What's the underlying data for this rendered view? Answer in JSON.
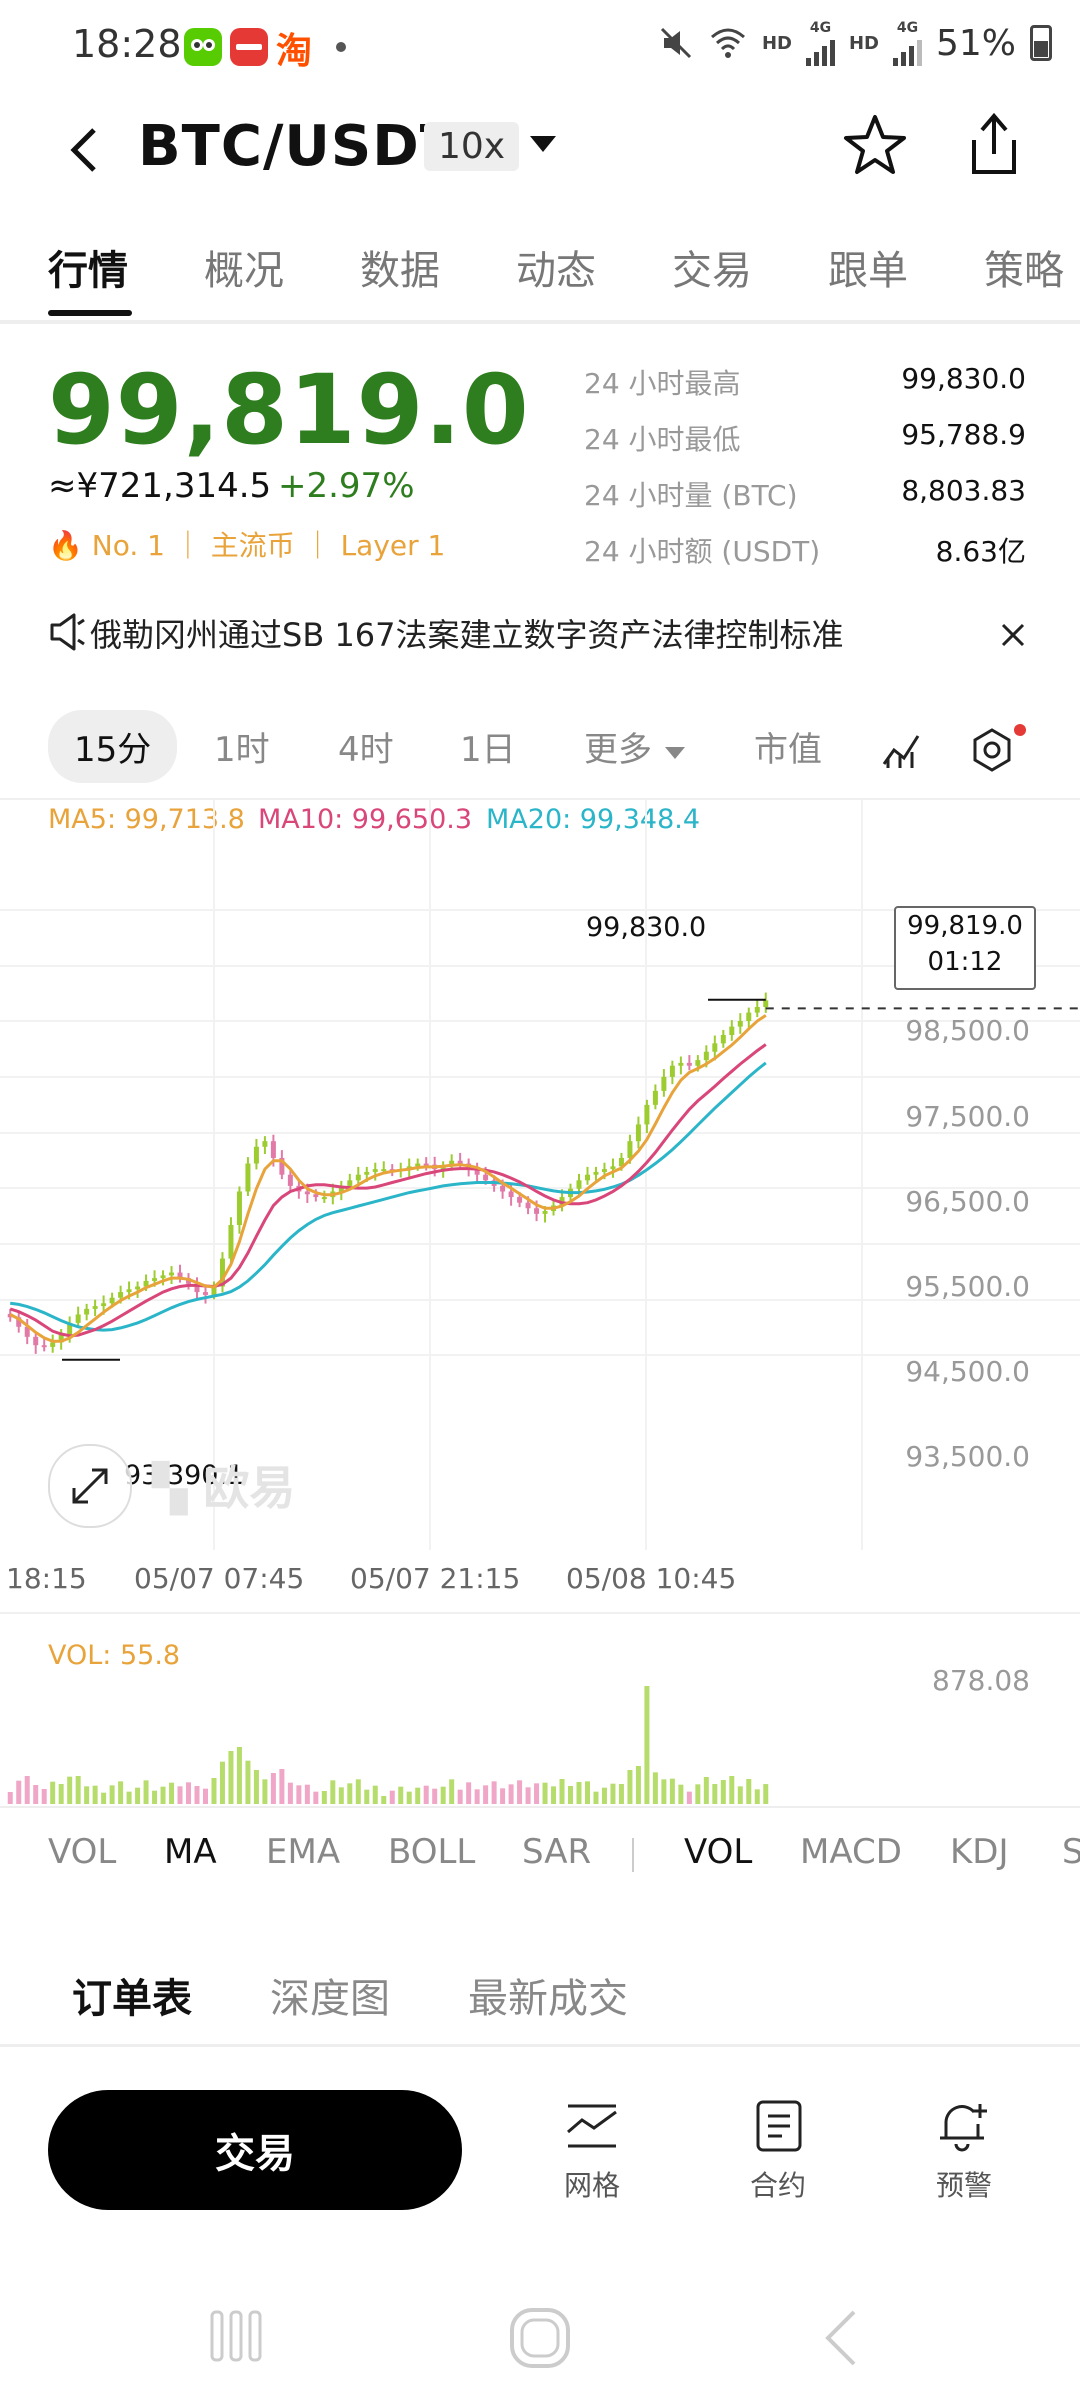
{
  "status_bar": {
    "time": "18:28",
    "hd1": "HD",
    "hd2": "HD",
    "net1": "4G",
    "net2": "4G",
    "battery": "51%",
    "app_icons": [
      "owl-app-icon",
      "red-app-icon",
      "taobao-icon"
    ]
  },
  "header": {
    "pair": "BTC/USDT",
    "leverage": "10x"
  },
  "tabs": [
    "行情",
    "概况",
    "数据",
    "动态",
    "交易",
    "跟单",
    "策略"
  ],
  "price": {
    "last": "99,819.0",
    "cny": "≈¥721,314.5",
    "change": "+2.97%",
    "tags": "No. 1 ｜ 主流币 ｜ Layer 1",
    "stats": [
      {
        "label": "24 小时最高",
        "value": "99,830.0"
      },
      {
        "label": "24 小时最低",
        "value": "95,788.9"
      },
      {
        "label": "24 小时量 (BTC)",
        "value": "8,803.83"
      },
      {
        "label": "24 小时额 (USDT)",
        "value": "8.63亿"
      }
    ]
  },
  "news": {
    "text": "俄勒冈州通过SB 167法案建立数字资产法律控制标准"
  },
  "intervals": {
    "items": [
      "15分",
      "1时",
      "4时",
      "1日",
      "更多"
    ],
    "market_cap": "市值"
  },
  "ma_legend": {
    "ma5": "MA5: 99,713.8",
    "ma10": "MA10: 99,650.3",
    "ma20": "MA20: 99,348.4"
  },
  "chart_data": {
    "type": "candlestick",
    "y_axis_labels": [
      "98,500.0",
      "97,500.0",
      "96,500.0",
      "95,500.0",
      "94,500.0",
      "93,500.0"
    ],
    "x_axis_labels": [
      "18:15",
      "05/07 07:45",
      "05/07 21:15",
      "05/08 10:45"
    ],
    "high_marker": "99,830.0",
    "low_marker": "93,390.1",
    "current_price": "99,819.0",
    "countdown": "01:12",
    "watermark": "欧易",
    "close": [
      94150,
      93980,
      93800,
      93650,
      93620,
      93700,
      93850,
      94050,
      94200,
      94300,
      94350,
      94400,
      94500,
      94600,
      94650,
      94700,
      94800,
      94850,
      94900,
      94950,
      94850,
      94750,
      94600,
      94550,
      94700,
      95200,
      95800,
      96400,
      96900,
      97200,
      97300,
      97000,
      96700,
      96500,
      96400,
      96350,
      96300,
      96300,
      96400,
      96500,
      96600,
      96700,
      96750,
      96800,
      96800,
      96780,
      96800,
      96850,
      96900,
      96880,
      96800,
      96850,
      96950,
      96900,
      96800,
      96700,
      96600,
      96500,
      96400,
      96300,
      96200,
      96100,
      96000,
      96050,
      96150,
      96300,
      96450,
      96600,
      96700,
      96750,
      96800,
      96850,
      97000,
      97300,
      97600,
      97950,
      98200,
      98450,
      98650,
      98700,
      98650,
      98750,
      98900,
      99050,
      99200,
      99350,
      99450,
      99600,
      99700,
      99819
    ],
    "ma5": [
      94200,
      94120,
      94000,
      93880,
      93780,
      93720,
      93720,
      93780,
      93880,
      94000,
      94120,
      94240,
      94350,
      94450,
      94530,
      94600,
      94680,
      94740,
      94800,
      94850,
      94850,
      94830,
      94770,
      94710,
      94690,
      94830,
      95100,
      95500,
      96000,
      96450,
      96800,
      96950,
      96950,
      96800,
      96600,
      96450,
      96380,
      96340,
      96340,
      96380,
      96440,
      96520,
      96610,
      96680,
      96730,
      96760,
      96780,
      96800,
      96830,
      96840,
      96840,
      96850,
      96870,
      96880,
      96860,
      96830,
      96760,
      96660,
      96550,
      96460,
      96360,
      96260,
      96160,
      96100,
      96100,
      96140,
      96220,
      96320,
      96450,
      96570,
      96680,
      96750,
      96820,
      96960,
      97120,
      97330,
      97610,
      97900,
      98170,
      98390,
      98530,
      98600,
      98680,
      98780,
      98900,
      99020,
      99160,
      99310,
      99450,
      99550
    ],
    "ma10": [
      94300,
      94250,
      94180,
      94100,
      94000,
      93900,
      93850,
      93820,
      93830,
      93880,
      93930,
      94000,
      94080,
      94170,
      94260,
      94350,
      94440,
      94520,
      94600,
      94660,
      94700,
      94720,
      94720,
      94710,
      94700,
      94740,
      94850,
      95040,
      95300,
      95600,
      95890,
      96150,
      96300,
      96400,
      96450,
      96500,
      96520,
      96520,
      96500,
      96480,
      96470,
      96460,
      96460,
      96480,
      96520,
      96560,
      96600,
      96640,
      96680,
      96720,
      96750,
      96780,
      96800,
      96810,
      96810,
      96800,
      96780,
      96750,
      96700,
      96640,
      96570,
      96490,
      96400,
      96320,
      96250,
      96200,
      96180,
      96180,
      96200,
      96250,
      96320,
      96400,
      96500,
      96620,
      96760,
      96920,
      97100,
      97300,
      97500,
      97690,
      97870,
      98020,
      98150,
      98280,
      98420,
      98550,
      98680,
      98800,
      98920,
      99030
    ],
    "ma20": [
      94400,
      94380,
      94340,
      94290,
      94230,
      94160,
      94090,
      94030,
      93980,
      93950,
      93930,
      93920,
      93930,
      93960,
      94000,
      94050,
      94110,
      94180,
      94250,
      94320,
      94380,
      94430,
      94470,
      94500,
      94530,
      94560,
      94610,
      94690,
      94800,
      94940,
      95090,
      95260,
      95420,
      95570,
      95700,
      95810,
      95900,
      95970,
      96020,
      96060,
      96100,
      96140,
      96180,
      96220,
      96260,
      96300,
      96340,
      96380,
      96410,
      96440,
      96470,
      96500,
      96520,
      96540,
      96550,
      96560,
      96560,
      96560,
      96550,
      96540,
      96520,
      96500,
      96470,
      96440,
      96410,
      96390,
      96380,
      96380,
      96390,
      96410,
      96440,
      96480,
      96530,
      96600,
      96690,
      96790,
      96900,
      97020,
      97150,
      97290,
      97440,
      97590,
      97740,
      97890,
      98030,
      98170,
      98310,
      98450,
      98580,
      98700
    ]
  },
  "volume": {
    "label": "VOL: 55.8",
    "max_label": "878.08"
  },
  "indicators": {
    "main": [
      "VOL",
      "MA",
      "EMA",
      "BOLL",
      "SAR"
    ],
    "sub": [
      "VOL",
      "MACD",
      "KDJ",
      "S"
    ]
  },
  "order_tabs": [
    "订单表",
    "深度图",
    "最新成交"
  ],
  "bottom_bar": {
    "trade": "交易",
    "items": [
      {
        "label": "网格",
        "icon": "grid-trading-icon"
      },
      {
        "label": "合约",
        "icon": "contract-icon"
      },
      {
        "label": "预警",
        "icon": "alert-bell-icon"
      }
    ]
  }
}
